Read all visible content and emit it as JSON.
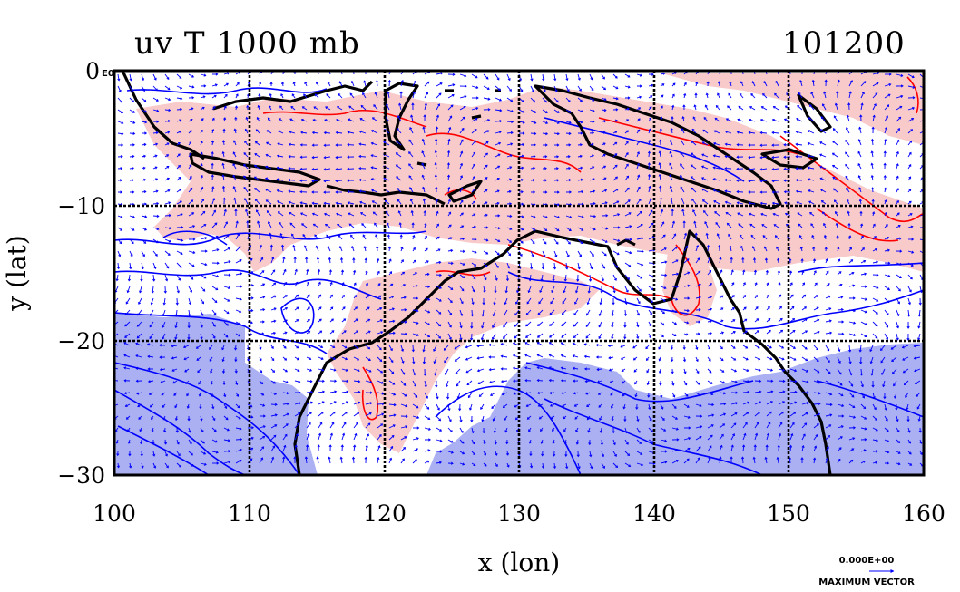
{
  "header": {
    "title": "uv T 1000 mb",
    "time_code": "101200"
  },
  "chart_data": {
    "type": "heatmap",
    "title": "uv T 1000 mb",
    "subtitle": "101200",
    "xlabel": "x (lon)",
    "ylabel": "y (lat)",
    "xlim": [
      100,
      160
    ],
    "ylim": [
      -30,
      0
    ],
    "x_ticks": [
      "100",
      "110",
      "120",
      "130",
      "140",
      "150",
      "160"
    ],
    "y_ticks": [
      "0",
      "−10",
      "−20",
      "−30"
    ],
    "y_tick_suffix": "E0",
    "grid": true,
    "vector_legend": {
      "magnitude": "0.000E+00",
      "label": "MAXIMUM VECTOR"
    },
    "colors": {
      "warm_fill": "#f9caca",
      "cold_fill": "#aab0f2",
      "warm_contour": "#ff0000",
      "cold_contour": "#0000ff",
      "coastline": "#000000",
      "vectors": "#0000ff"
    }
  }
}
